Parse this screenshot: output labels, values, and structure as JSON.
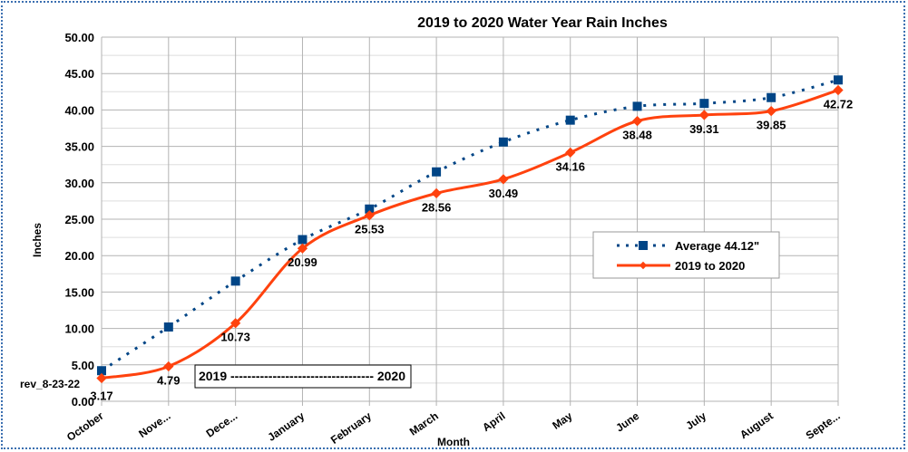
{
  "chart_data": {
    "type": "line",
    "title": "2019 to 2020 Water Year Rain Inches",
    "xlabel": "Month",
    "ylabel": "Inches",
    "ylim": [
      0,
      50
    ],
    "ytick_step": 5,
    "yticks": [
      "0.00",
      "5.00",
      "10.00",
      "15.00",
      "20.00",
      "25.00",
      "30.00",
      "35.00",
      "40.00",
      "45.00",
      "50.00"
    ],
    "grid": true,
    "legend_position": "right",
    "categories": [
      "October",
      "Nove...",
      "Dece...",
      "January",
      "February",
      "March",
      "April",
      "May",
      "June",
      "July",
      "August",
      "Septe..."
    ],
    "series": [
      {
        "name": "Average 44.12\"",
        "color": "#004586",
        "style": "dotted",
        "marker": "square",
        "values": [
          4.2,
          10.2,
          16.5,
          22.2,
          26.4,
          31.5,
          35.6,
          38.6,
          40.5,
          40.9,
          41.7,
          44.12
        ]
      },
      {
        "name": "2019 to 2020",
        "color": "#ff420e",
        "style": "solid-smooth",
        "marker": "diamond",
        "values": [
          3.17,
          4.79,
          10.73,
          20.99,
          25.53,
          28.56,
          30.49,
          34.16,
          38.48,
          39.31,
          39.85,
          42.72
        ],
        "data_labels": [
          "3.17",
          "4.79",
          "10.73",
          "20.99",
          "25.53",
          "28.56",
          "30.49",
          "34.16",
          "38.48",
          "39.31",
          "39.85",
          "42.72"
        ]
      }
    ],
    "annotations": [
      "rev_8-23-22",
      "2019 ---------------------------------- 2020"
    ]
  }
}
